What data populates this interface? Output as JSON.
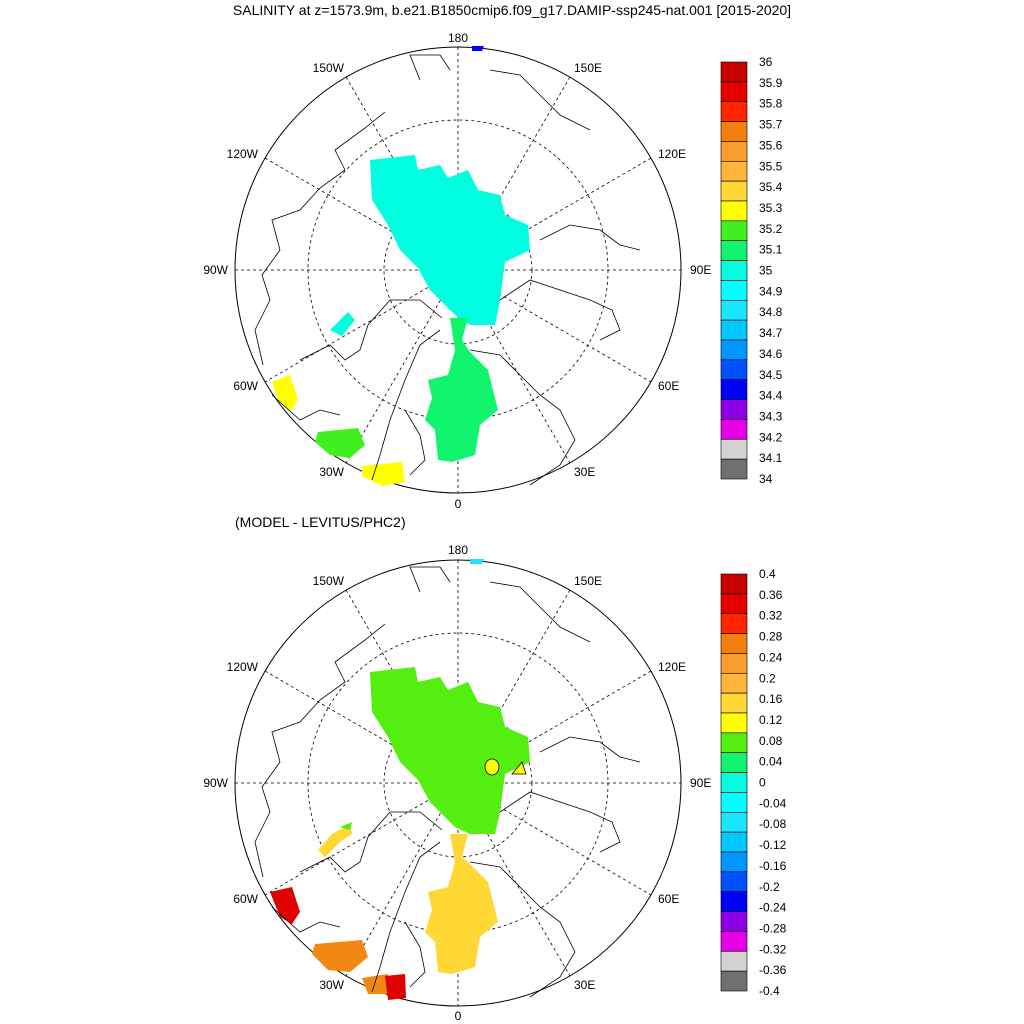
{
  "title": "SALINITY at z=1573.9m, b.e21.B1850cmip6.f09_g17.DAMIP-ssp245-nat.001 [2015-2020]",
  "subtitle": "(MODEL - LEVITUS/PHC2)",
  "longitude_labels": {
    "top": "180",
    "bottom": "0",
    "left": "90W",
    "right": "90E",
    "upper_left_1": "150W",
    "upper_left_2": "120W",
    "upper_right_1": "150E",
    "upper_right_2": "120E",
    "lower_left_1": "60W",
    "lower_left_2": "30W",
    "lower_right_1": "60E",
    "lower_right_2": "30E"
  },
  "colors": {
    "ice_blue": "#00ffe0",
    "green_top": "#11f56e",
    "yellow": "#ffff00",
    "lime": "#40f020",
    "blue_cap": "#0000ff",
    "diff_green": "#55ee11",
    "diff_gold": "#ffd836",
    "diff_orange": "#f28811",
    "diff_red": "#e00000",
    "diff_cyan": "#18e5ff"
  },
  "panels": [
    {
      "name": "salinity",
      "colorbar": {
        "labels": [
          "36",
          "35.9",
          "35.8",
          "35.7",
          "35.6",
          "35.5",
          "35.4",
          "35.3",
          "35.2",
          "35.1",
          "35",
          "34.9",
          "34.8",
          "34.7",
          "34.6",
          "34.5",
          "34.4",
          "34.3",
          "34.2",
          "34.1",
          "34"
        ],
        "colors": [
          "#c80000",
          "#e60000",
          "#ff2600",
          "#f28011",
          "#fa9c2e",
          "#ffb43a",
          "#ffd836",
          "#ffff00",
          "#40f020",
          "#11f56e",
          "#00ffe0",
          "#00ffff",
          "#18e5ff",
          "#00c8ff",
          "#0096ff",
          "#0050ff",
          "#0000ff",
          "#8c00e6",
          "#e600e6",
          "#d2d2d2",
          "#707070"
        ]
      }
    },
    {
      "name": "difference",
      "colorbar": {
        "labels": [
          "0.4",
          "0.36",
          "0.32",
          "0.28",
          "0.24",
          "0.2",
          "0.16",
          "0.12",
          "0.08",
          "0.04",
          "0",
          "-0.04",
          "-0.08",
          "-0.12",
          "-0.16",
          "-0.2",
          "-0.24",
          "-0.28",
          "-0.32",
          "-0.36",
          "-0.4"
        ],
        "colors": [
          "#c80000",
          "#e60000",
          "#ff2600",
          "#f28011",
          "#fa9c2e",
          "#ffb43a",
          "#ffd836",
          "#ffff00",
          "#55ee11",
          "#11f56e",
          "#00ffe0",
          "#00ffff",
          "#18e5ff",
          "#00c8ff",
          "#0096ff",
          "#0050ff",
          "#0000ff",
          "#8c00e6",
          "#e600e6",
          "#d2d2d2",
          "#707070"
        ]
      }
    }
  ]
}
